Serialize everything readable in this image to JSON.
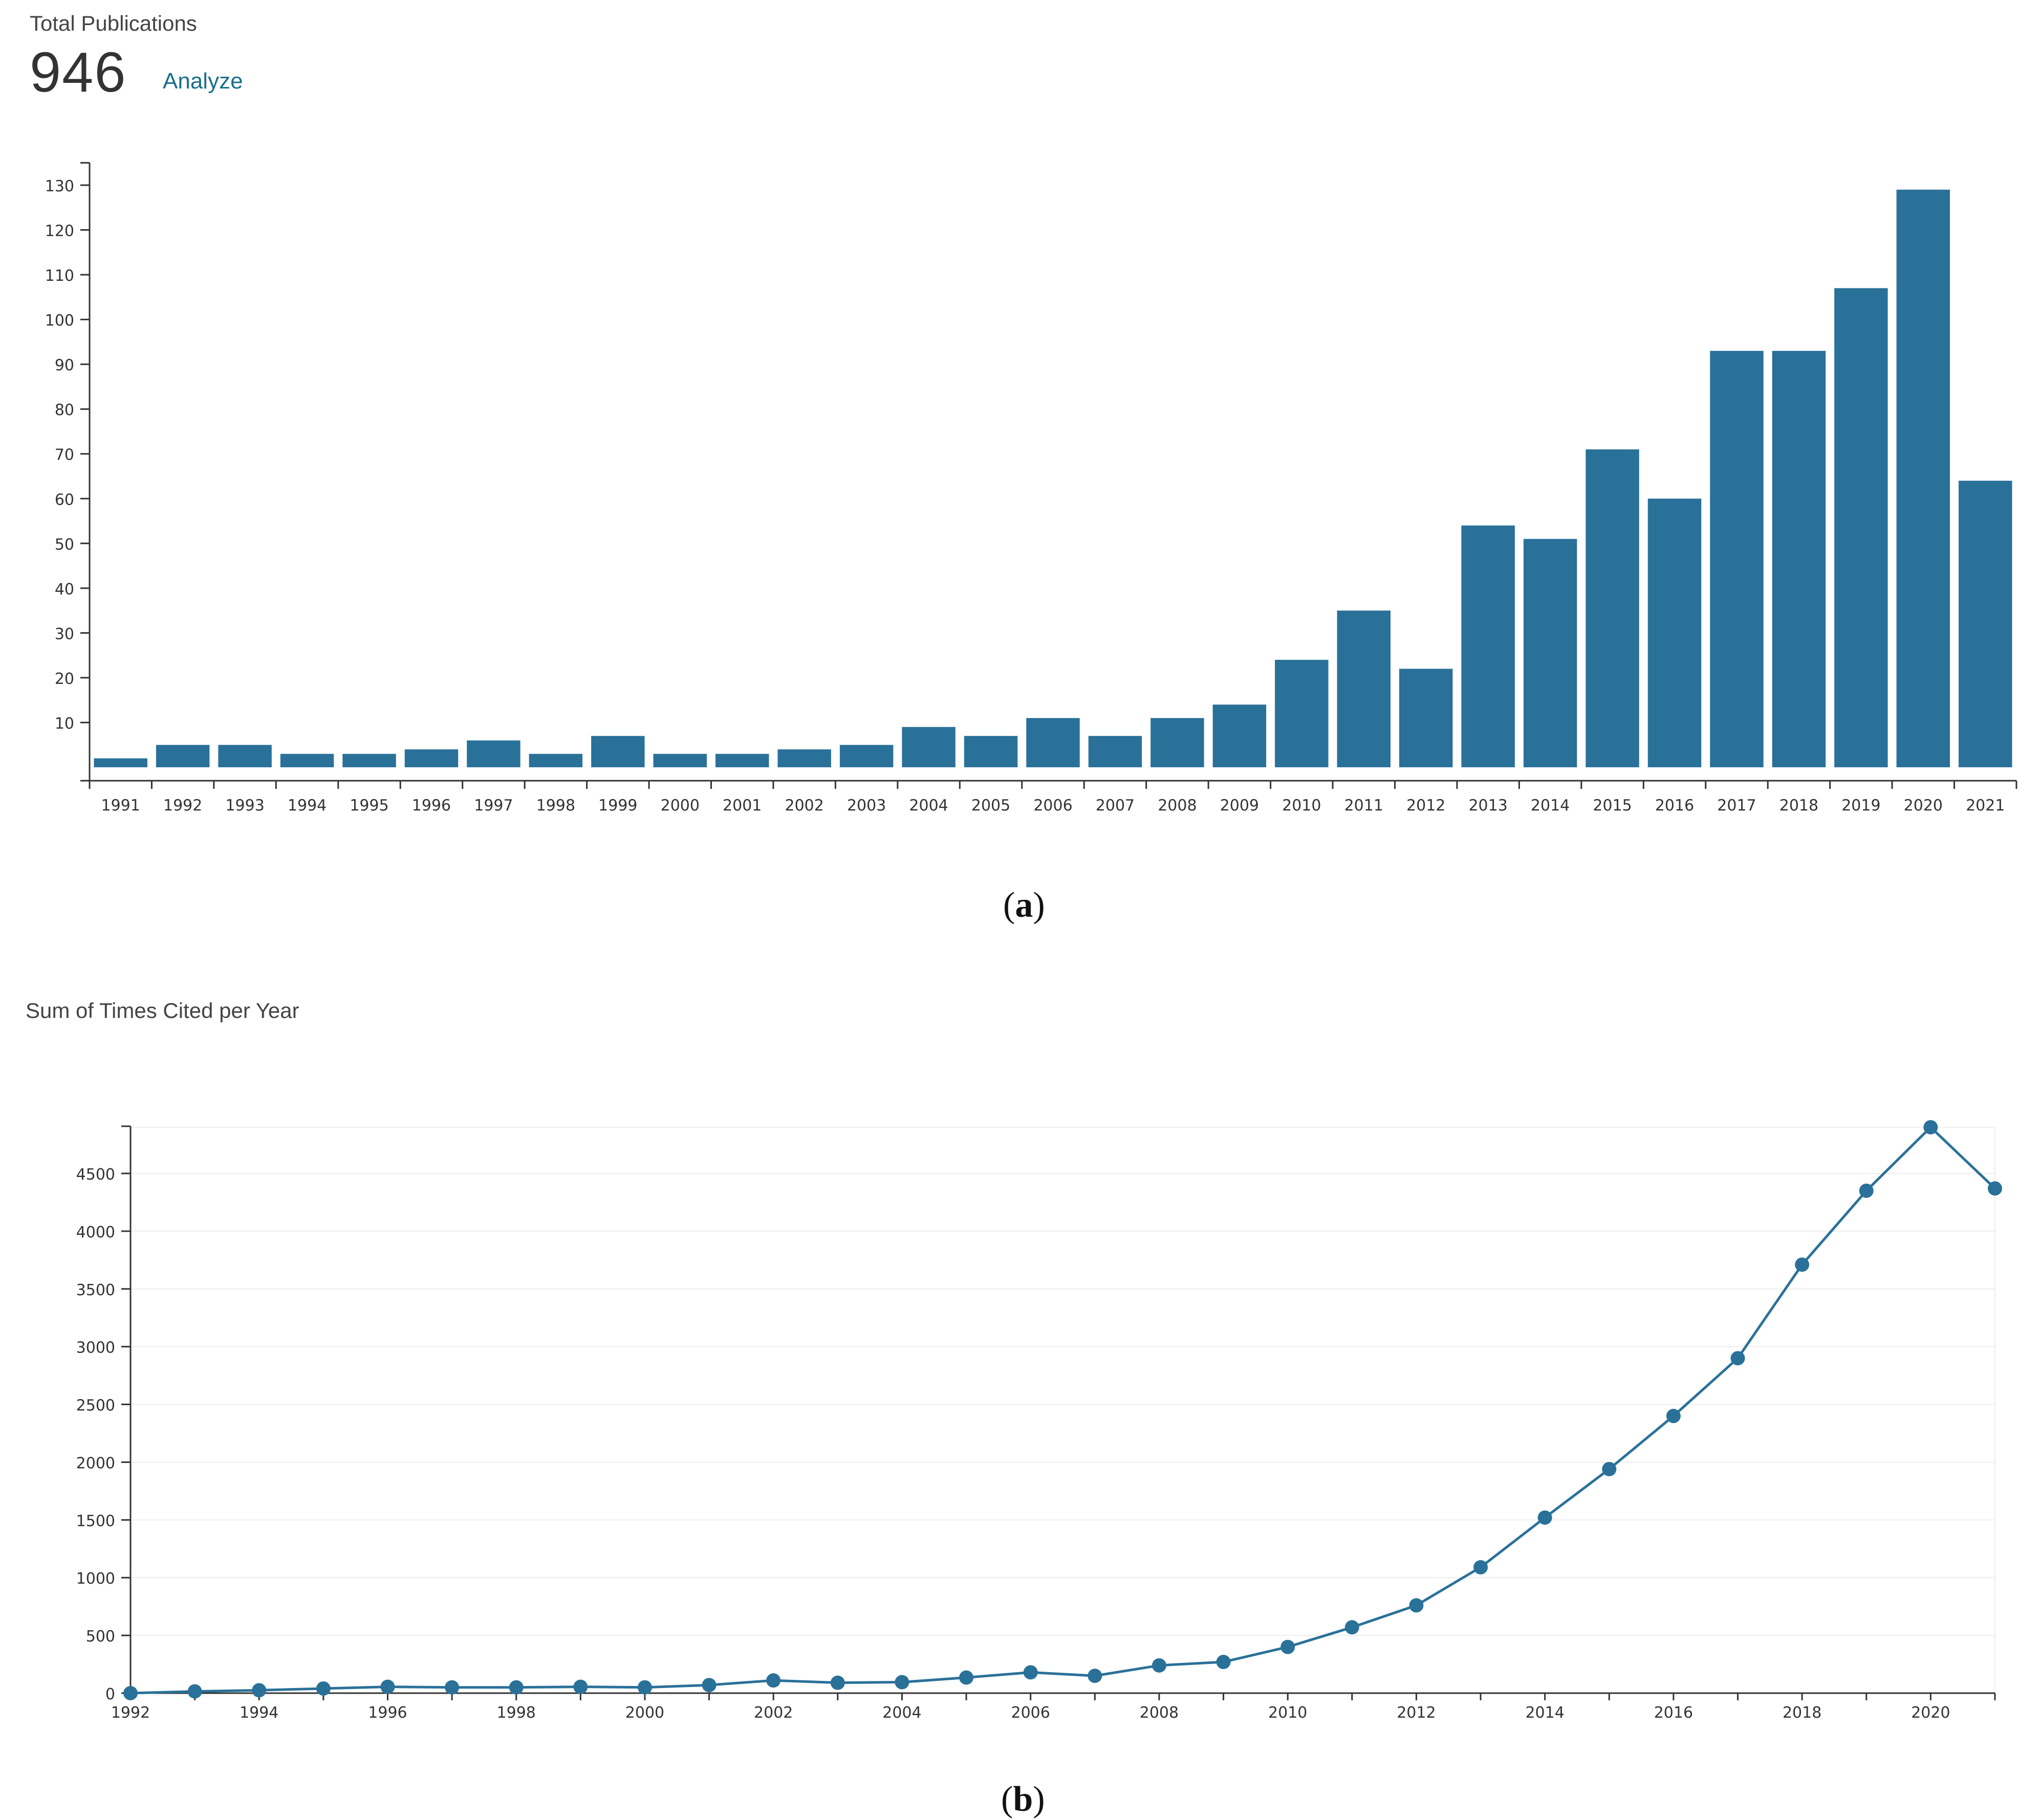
{
  "header": {
    "total_label": "Total Publications",
    "total_value": "946",
    "analyze_label": "Analyze"
  },
  "captions": {
    "a": "a",
    "b": "b"
  },
  "section_b": {
    "title": "Sum of Times Cited per Year"
  },
  "colors": {
    "bar": "#2a7199",
    "line": "#2a7199",
    "axis": "#333333",
    "grid": "#eeeeee"
  },
  "chart_data": [
    {
      "type": "bar",
      "title": "",
      "xlabel": "",
      "ylabel": "",
      "categories": [
        "1991",
        "1992",
        "1993",
        "1994",
        "1995",
        "1996",
        "1997",
        "1998",
        "1999",
        "2000",
        "2001",
        "2002",
        "2003",
        "2004",
        "2005",
        "2006",
        "2007",
        "2008",
        "2009",
        "2010",
        "2011",
        "2012",
        "2013",
        "2014",
        "2015",
        "2016",
        "2017",
        "2018",
        "2019",
        "2020",
        "2021"
      ],
      "values": [
        2,
        5,
        5,
        3,
        3,
        4,
        6,
        3,
        7,
        3,
        3,
        4,
        5,
        9,
        7,
        11,
        7,
        11,
        14,
        24,
        35,
        22,
        54,
        51,
        71,
        60,
        93,
        93,
        107,
        129,
        64
      ],
      "yticks": [
        10,
        20,
        30,
        40,
        50,
        60,
        70,
        80,
        90,
        100,
        110,
        120,
        130
      ],
      "ylim": [
        -3,
        135
      ],
      "grid": false
    },
    {
      "type": "line",
      "title": "",
      "xlabel": "",
      "ylabel": "",
      "x": [
        1992,
        1993,
        1994,
        1995,
        1996,
        1997,
        1998,
        1999,
        2000,
        2001,
        2002,
        2003,
        2004,
        2005,
        2006,
        2007,
        2008,
        2009,
        2010,
        2011,
        2012,
        2013,
        2014,
        2015,
        2016,
        2017,
        2018,
        2019,
        2020,
        2021
      ],
      "y": [
        0,
        15,
        25,
        40,
        55,
        50,
        50,
        55,
        50,
        70,
        110,
        90,
        95,
        135,
        180,
        150,
        240,
        270,
        400,
        570,
        760,
        1090,
        1520,
        1940,
        2400,
        2900,
        3710,
        4350,
        4900,
        4370
      ],
      "xticks": [
        "1992",
        "1994",
        "1996",
        "1998",
        "2000",
        "2002",
        "2004",
        "2006",
        "2008",
        "2010",
        "2012",
        "2014",
        "2016",
        "2018",
        "2020"
      ],
      "yticks": [
        0,
        500,
        1000,
        1500,
        2000,
        2500,
        3000,
        3500,
        4000,
        4500
      ],
      "ylim": [
        0,
        4900
      ],
      "grid": true
    }
  ]
}
